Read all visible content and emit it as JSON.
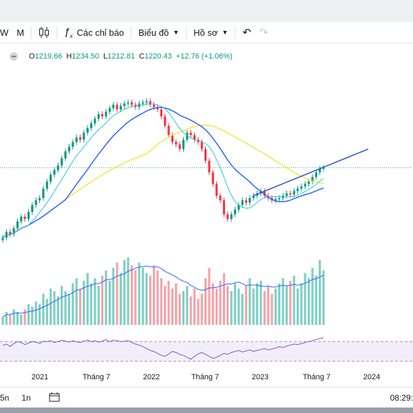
{
  "toolbar": {
    "interval_w": "W",
    "interval_m": "M",
    "indicators_label": "Các chỉ báo",
    "chart_type_label": "Biểu đồ",
    "profile_label": "Hồ sơ"
  },
  "legend": {
    "open_label": "O",
    "open": "1219.66",
    "high_label": "H",
    "high": "1234.50",
    "low_label": "L",
    "low": "1212.81",
    "close_label": "C",
    "close": "1220.43",
    "change": "+12.76 (+1.06%)"
  },
  "time_axis": [
    "2021",
    "Tháng 7",
    "2022",
    "Tháng 7",
    "2023",
    "Tháng 7",
    "2024"
  ],
  "bottom": {
    "range_a": "5n",
    "range_b": "1n",
    "clock": "08:29:"
  },
  "colors": {
    "up": "#089981",
    "down": "#f23645",
    "ma_fast": "#26c6da",
    "ma_mid": "#2962ff",
    "ma_slow": "#f5e642",
    "trend": "#3050c8",
    "rsi": "#7e57c2"
  },
  "chart_data": {
    "type": "candlestick",
    "series": [
      {
        "name": "price",
        "values": [
          920,
          945,
          935,
          960,
          990,
          1010,
          1000,
          1030,
          1060,
          1080,
          1090,
          1130,
          1160,
          1190,
          1210,
          1230,
          1260,
          1290,
          1310,
          1330,
          1350,
          1340,
          1370,
          1390,
          1410,
          1430,
          1450,
          1440,
          1460,
          1475,
          1490,
          1470,
          1485,
          1495,
          1500,
          1490,
          1480,
          1495,
          1500,
          1505,
          1490,
          1480,
          1470,
          1440,
          1400,
          1360,
          1330,
          1320,
          1300,
          1340,
          1370,
          1360,
          1340,
          1330,
          1300,
          1250,
          1200,
          1150,
          1100,
          1080,
          1020,
          1000,
          1020,
          1040,
          1060,
          1080,
          1070,
          1090,
          1100,
          1110,
          1120,
          1100,
          1090,
          1080,
          1085,
          1090,
          1100,
          1110,
          1105,
          1120,
          1130,
          1140,
          1150,
          1160,
          1180,
          1200,
          1215,
          1220
        ]
      },
      {
        "name": "volume",
        "values": [
          3,
          5,
          4,
          6,
          5,
          4,
          6,
          8,
          7,
          9,
          8,
          12,
          10,
          14,
          13,
          11,
          15,
          13,
          12,
          16,
          18,
          14,
          17,
          20,
          16,
          18,
          15,
          19,
          21,
          17,
          22,
          24,
          20,
          25,
          26,
          23,
          21,
          24,
          22,
          20,
          19,
          23,
          21,
          18,
          15,
          17,
          14,
          16,
          12,
          13,
          15,
          11,
          14,
          10,
          12,
          18,
          22,
          16,
          14,
          17,
          20,
          15,
          13,
          16,
          14,
          12,
          15,
          18,
          14,
          16,
          17,
          13,
          15,
          12,
          14,
          16,
          18,
          15,
          17,
          19,
          14,
          16,
          20,
          18,
          22,
          19,
          25,
          21
        ]
      },
      {
        "name": "rsi",
        "values": [
          62,
          65,
          60,
          66,
          70,
          68,
          64,
          67,
          70,
          69,
          66,
          71,
          70,
          72,
          68,
          70,
          73,
          71,
          69,
          72,
          70,
          68,
          71,
          73,
          70,
          72,
          69,
          71,
          74,
          70,
          73,
          72,
          70,
          71,
          72,
          68,
          65,
          63,
          60,
          56,
          52,
          50,
          46,
          42,
          40,
          45,
          50,
          48,
          44,
          42,
          38,
          34,
          40,
          45,
          48,
          44,
          40,
          36,
          38,
          42,
          46,
          44,
          48,
          50,
          52,
          49,
          51,
          53,
          50,
          52,
          54,
          56,
          53,
          55,
          57,
          60,
          58,
          61,
          63,
          65,
          64,
          66,
          68,
          70,
          72,
          74,
          76,
          78
        ]
      }
    ]
  }
}
